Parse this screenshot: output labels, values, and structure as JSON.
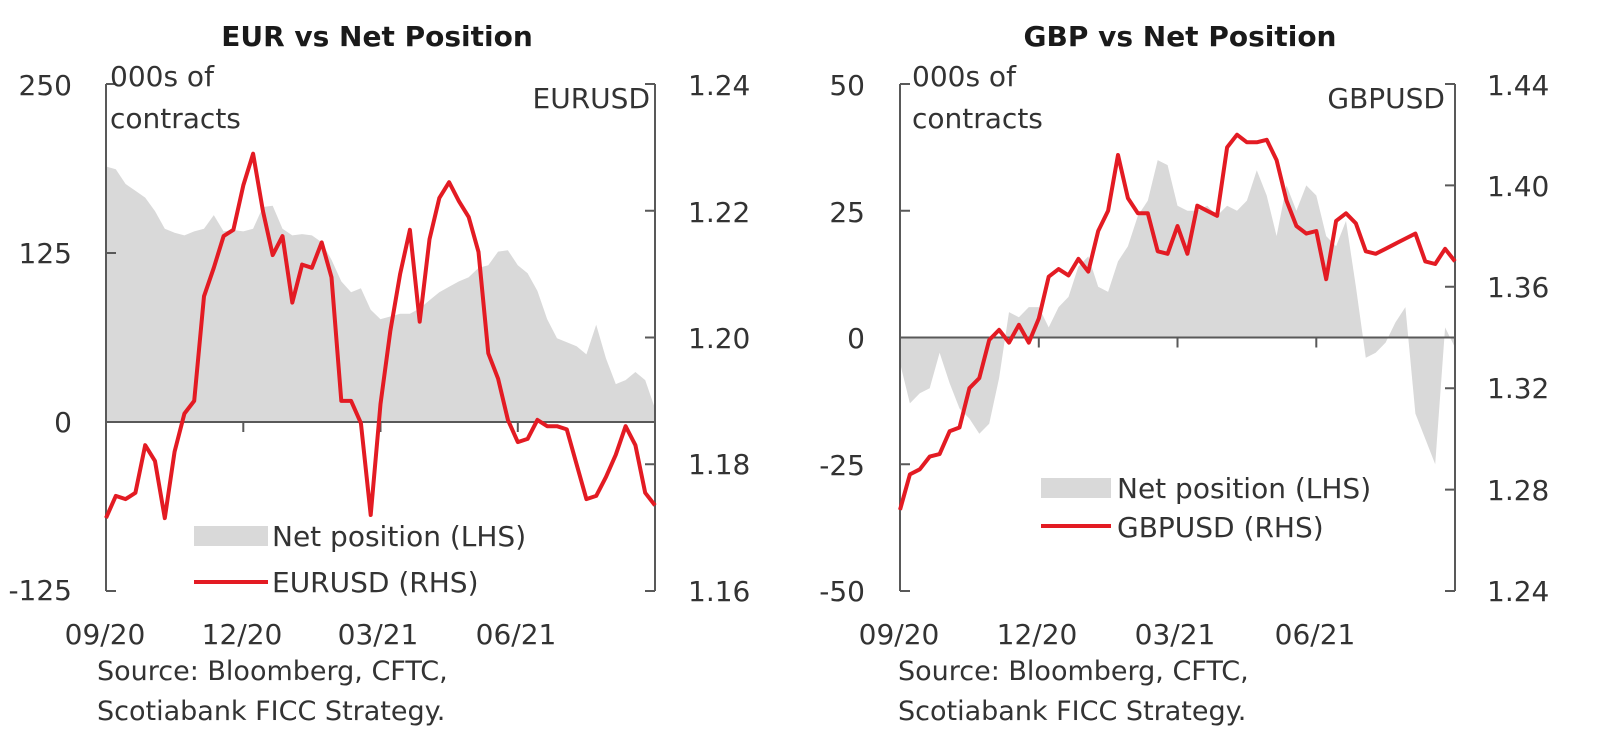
{
  "colors": {
    "area": "#d9d9d9",
    "line": "#e31b23",
    "axis": "#595959"
  },
  "source_lines": [
    "Source: Bloomberg, CFTC,",
    "Scotiabank FICC Strategy."
  ],
  "chart_data": [
    {
      "type": "area+line",
      "title": "EUR vs Net Position",
      "left_unit": [
        "000s of",
        "contracts"
      ],
      "right_unit": "EURUSD",
      "x_tick_labels": [
        "09/20",
        "12/20",
        "03/21",
        "06/21"
      ],
      "left_ticks": [
        "250",
        "125",
        "0",
        "-125"
      ],
      "right_ticks": [
        "1.24",
        "1.22",
        "1.20",
        "1.18",
        "1.16"
      ],
      "ylim_left": [
        -125,
        250
      ],
      "ylim_right": [
        1.16,
        1.24
      ],
      "x_range": [
        0,
        56
      ],
      "x_tick_positions": [
        0,
        14,
        28,
        42
      ],
      "legend": [
        "Net position (LHS)",
        "EURUSD (RHS)"
      ],
      "series": [
        {
          "name": "Net position (LHS)",
          "kind": "area",
          "axis": "left",
          "values": [
            189,
            187,
            176,
            171,
            166,
            156,
            143,
            140,
            138,
            141,
            143,
            153,
            141,
            142,
            141,
            143,
            159,
            160,
            143,
            138,
            139,
            138,
            133,
            120,
            104,
            96,
            99,
            83,
            76,
            78,
            80,
            80,
            84,
            90,
            96,
            100,
            104,
            107,
            114,
            116,
            126,
            127,
            116,
            110,
            97,
            76,
            62,
            59,
            56,
            50,
            72,
            47,
            28,
            31,
            37,
            31,
            10
          ]
        },
        {
          "name": "EURUSD (RHS)",
          "kind": "line",
          "axis": "right",
          "values": [
            1.1715,
            1.175,
            1.1745,
            1.1755,
            1.183,
            1.1805,
            1.1715,
            1.182,
            1.188,
            1.19,
            1.2065,
            1.211,
            1.216,
            1.217,
            1.224,
            1.229,
            1.22,
            1.213,
            1.216,
            1.2055,
            1.2115,
            1.211,
            1.215,
            1.2095,
            1.19,
            1.19,
            1.1865,
            1.172,
            1.1895,
            1.201,
            1.21,
            1.217,
            1.2025,
            1.2155,
            1.222,
            1.2245,
            1.2215,
            1.219,
            1.2135,
            1.1975,
            1.1935,
            1.187,
            1.1835,
            1.184,
            1.187,
            1.186,
            1.186,
            1.1855,
            1.18,
            1.1745,
            1.175,
            1.178,
            1.1815,
            1.186,
            1.183,
            1.1755,
            1.1735
          ]
        }
      ]
    },
    {
      "type": "area+line",
      "title": "GBP vs Net Position",
      "left_unit": [
        "000s of",
        "contracts"
      ],
      "right_unit": "GBPUSD",
      "x_tick_labels": [
        "09/20",
        "12/20",
        "03/21",
        "06/21"
      ],
      "left_ticks": [
        "50",
        "25",
        "0",
        "-25",
        "-50"
      ],
      "right_ticks": [
        "1.44",
        "1.40",
        "1.36",
        "1.32",
        "1.28",
        "1.24"
      ],
      "ylim_left": [
        -50,
        50
      ],
      "ylim_right": [
        1.24,
        1.44
      ],
      "x_range": [
        0,
        56
      ],
      "x_tick_positions": [
        0,
        14,
        28,
        42
      ],
      "legend": [
        "Net position (LHS)",
        "GBPUSD (RHS)"
      ],
      "series": [
        {
          "name": "Net position (LHS)",
          "kind": "area",
          "axis": "left",
          "values": [
            -5,
            -13,
            -11,
            -10,
            -3,
            -9,
            -14,
            -16,
            -19,
            -17,
            -8,
            5,
            4,
            6,
            6,
            2,
            6,
            8,
            14,
            16,
            10,
            9,
            15,
            18,
            24,
            27,
            35,
            34,
            26,
            25,
            25,
            26,
            24,
            26,
            25,
            27,
            33,
            28,
            20,
            30,
            25,
            30,
            28,
            20,
            18,
            23,
            10,
            -4,
            -3,
            -1,
            3,
            6,
            -15,
            -20,
            -25,
            2,
            -2
          ]
        },
        {
          "name": "GBPUSD (RHS)",
          "kind": "line",
          "axis": "right",
          "values": [
            1.272,
            1.286,
            1.288,
            1.293,
            1.294,
            1.303,
            1.3045,
            1.32,
            1.324,
            1.339,
            1.343,
            1.338,
            1.345,
            1.338,
            1.3475,
            1.364,
            1.367,
            1.3645,
            1.371,
            1.366,
            1.382,
            1.39,
            1.412,
            1.395,
            1.389,
            1.389,
            1.374,
            1.373,
            1.384,
            1.373,
            1.392,
            1.39,
            1.388,
            1.415,
            1.42,
            1.417,
            1.417,
            1.418,
            1.41,
            1.394,
            1.384,
            1.381,
            1.382,
            1.363,
            1.386,
            1.389,
            1.385,
            1.374,
            1.373,
            1.375,
            1.377,
            1.379,
            1.381,
            1.37,
            1.369,
            1.375,
            1.37
          ]
        }
      ]
    }
  ]
}
